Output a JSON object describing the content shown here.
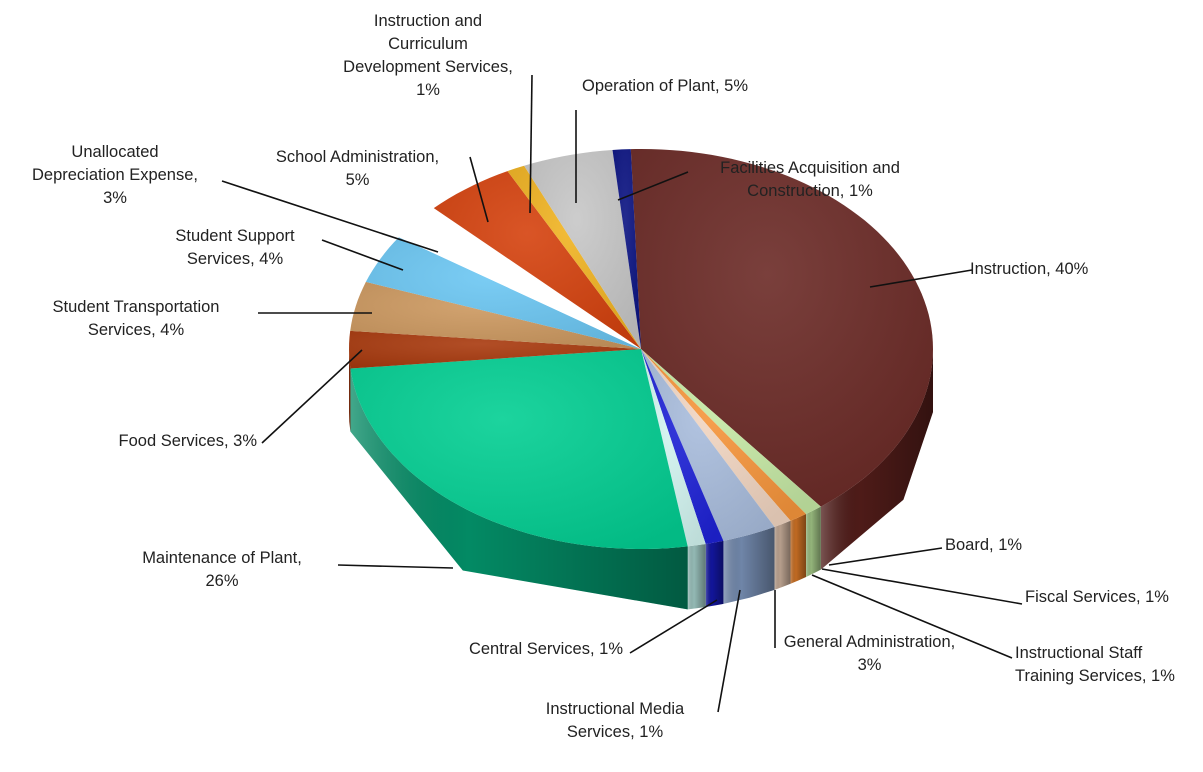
{
  "chart_data": {
    "type": "pie",
    "title": "",
    "slices": [
      {
        "label": [
          "Instruction, 40%"
        ],
        "value": 40,
        "color": "#6B2A26",
        "side": "#4E1B18"
      },
      {
        "label": [
          "Board, 1%"
        ],
        "value": 1,
        "color": "#C6E9A5",
        "side": "#93B47A"
      },
      {
        "label": [
          "Fiscal Services, 1%"
        ],
        "value": 1,
        "color": "#F7963C",
        "side": "#C06A22"
      },
      {
        "label": [
          "Instructional Staff",
          "Training Services, 1%"
        ],
        "value": 1,
        "color": "#F2D6C2",
        "side": "#B79E8C"
      },
      {
        "label": [
          "General Administration,",
          "3%"
        ],
        "value": 3,
        "color": "#A9BDDD",
        "side": "#6F85A8"
      },
      {
        "label": [
          "Instructional Media",
          "Services, 1%"
        ],
        "value": 1,
        "color": "#1E22D6",
        "side": "#12159A"
      },
      {
        "label": [
          "Central Services, 1%"
        ],
        "value": 1,
        "color": "#D3F5F1",
        "side": "#93B9B4"
      },
      {
        "label": [
          "Maintenance of Plant,",
          "26%"
        ],
        "value": 26,
        "color": "#03CF93",
        "side": "#038A64"
      },
      {
        "label": [
          "Food Services, 3%"
        ],
        "value": 3,
        "color": "#A93A0E",
        "side": "#7A2707"
      },
      {
        "label": [
          "Student Transportation",
          "Services, 4%"
        ],
        "value": 4,
        "color": "#CD9960",
        "side": "#95683C"
      },
      {
        "label": [
          "Student Support",
          "Services, 4%"
        ],
        "value": 4,
        "color": "#6CC7F3",
        "side": "#4593BA"
      },
      {
        "label": [
          "Unallocated",
          "Depreciation Expense,",
          "3%"
        ],
        "value": 3,
        "color": "#FFFFFF",
        "side": "#FFFFFF",
        "exploded": true
      },
      {
        "label": [
          "School Administration,",
          "5%"
        ],
        "value": 5,
        "color": "#D5420E",
        "side": "#9C2E06"
      },
      {
        "label": [
          "Instruction and",
          "Curriculum",
          "Development Services,",
          "1%"
        ],
        "value": 1,
        "color": "#F0B322",
        "side": "#B88414"
      },
      {
        "label": [
          "Operation of Plant, 5%"
        ],
        "value": 5,
        "color": "#C7C7C7",
        "side": "#8E8E8E"
      },
      {
        "label": [
          "Facilities Acquisition and",
          "Construction, 1%"
        ],
        "value": 1,
        "color": "#0B1382",
        "side": "#060B52"
      }
    ]
  }
}
